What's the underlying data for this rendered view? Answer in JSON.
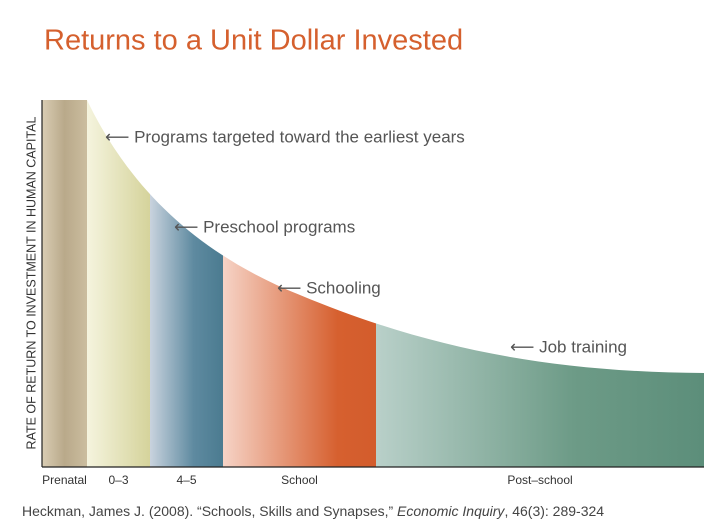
{
  "chart_data": {
    "type": "area",
    "title": "Returns to a Unit Dollar Invested",
    "y_label": "RATE OF RETURN TO INVESTMENT IN HUMAN CAPITAL",
    "categories": [
      "Prenatal",
      "0–3",
      "4–5",
      "School",
      "Post–school"
    ],
    "annotations": [
      "⟵ Programs targeted toward the earliest years",
      "⟵ Preschool programs",
      "⟵ Schooling",
      "⟵ Job training"
    ],
    "source": {
      "before": "Heckman, James J. (2008). “Schools, Skills and Synapses,” ",
      "journal": "Economic Inquiry",
      "after": ", 46(3): 289-324"
    }
  }
}
